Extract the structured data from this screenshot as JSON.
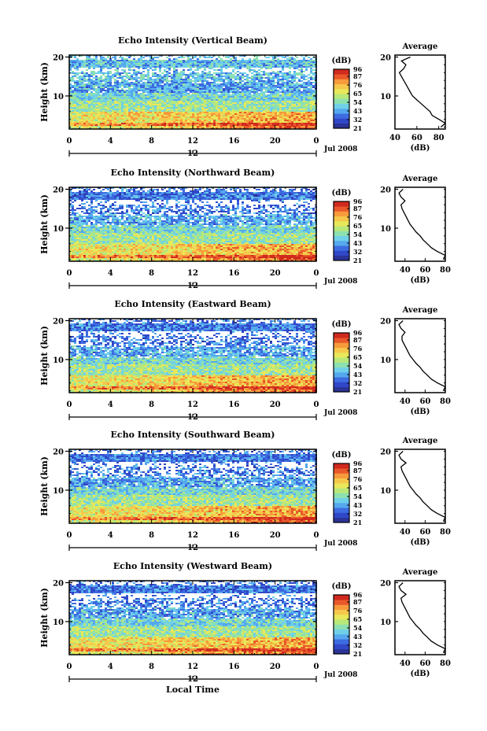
{
  "figure": {
    "x_axis_label": "Local Time",
    "date_label": "Jul 2008",
    "colorbar_unit": "(dB)",
    "profile_title": "Average",
    "profile_xlabel": "(dB)",
    "colorbar_ticks": [
      "96",
      "87",
      "76",
      "65",
      "54",
      "43",
      "32",
      "21"
    ],
    "colormap": [
      "#2b3396",
      "#3047c8",
      "#3d6be0",
      "#55a8ee",
      "#6fd0e8",
      "#8de0b0",
      "#b8e87a",
      "#e8e85a",
      "#f5c84c",
      "#f79a3c",
      "#e9582a",
      "#d02a1e"
    ]
  },
  "chart_data": [
    {
      "type": "heatmap",
      "title": "Echo Intensity (Vertical Beam)",
      "ylabel": "Height (km)",
      "xlabel": "Local Time",
      "x_ticks": [
        "0",
        "4",
        "8",
        "12",
        "16",
        "20",
        "0"
      ],
      "x_range": [
        0,
        24
      ],
      "y_ticks": [
        "20",
        "10"
      ],
      "y_range": [
        1.5,
        20.5
      ],
      "colorbar_range": [
        21,
        96
      ],
      "profile": {
        "title": "Average",
        "xlabel": "(dB)",
        "x_ticks": [
          "40",
          "60",
          "80"
        ],
        "x_range": [
          40,
          86
        ],
        "y_ticks": [
          "20",
          "10"
        ],
        "points": [
          [
            82,
            2
          ],
          [
            86,
            3
          ],
          [
            80,
            4
          ],
          [
            74,
            5
          ],
          [
            72,
            6
          ],
          [
            68,
            7
          ],
          [
            64,
            8
          ],
          [
            60,
            9
          ],
          [
            56,
            10
          ],
          [
            54,
            11
          ],
          [
            52,
            12
          ],
          [
            50,
            13
          ],
          [
            48,
            14
          ],
          [
            46,
            15
          ],
          [
            44,
            16
          ],
          [
            48,
            17
          ],
          [
            50,
            18
          ],
          [
            46,
            19
          ],
          [
            54,
            20
          ]
        ]
      }
    },
    {
      "type": "heatmap",
      "title": "Echo Intensity (Northward Beam)",
      "ylabel": "Height (km)",
      "xlabel": "Local Time",
      "x_ticks": [
        "0",
        "4",
        "8",
        "12",
        "16",
        "20",
        "0"
      ],
      "x_range": [
        0,
        24
      ],
      "y_ticks": [
        "20",
        "10"
      ],
      "y_range": [
        1.5,
        20.5
      ],
      "colorbar_range": [
        21,
        96
      ],
      "profile": {
        "title": "Average",
        "xlabel": "(dB)",
        "x_ticks": [
          "40",
          "60",
          "80"
        ],
        "x_range": [
          30,
          80
        ],
        "y_ticks": [
          "20",
          "10"
        ],
        "points": [
          [
            78,
            2
          ],
          [
            80,
            3
          ],
          [
            72,
            4
          ],
          [
            66,
            5
          ],
          [
            62,
            6
          ],
          [
            58,
            7
          ],
          [
            55,
            8
          ],
          [
            51,
            9
          ],
          [
            48,
            10
          ],
          [
            45,
            11
          ],
          [
            43,
            12
          ],
          [
            41,
            13
          ],
          [
            39,
            14
          ],
          [
            37,
            15
          ],
          [
            36,
            16
          ],
          [
            40,
            17
          ],
          [
            36,
            18
          ],
          [
            34,
            19
          ],
          [
            38,
            20
          ]
        ]
      }
    },
    {
      "type": "heatmap",
      "title": "Echo Intensity (Eastward Beam)",
      "ylabel": "Height (km)",
      "xlabel": "Local Time",
      "x_ticks": [
        "0",
        "4",
        "8",
        "12",
        "16",
        "20",
        "0"
      ],
      "x_range": [
        0,
        24
      ],
      "y_ticks": [
        "20",
        "10"
      ],
      "y_range": [
        1.5,
        20.5
      ],
      "colorbar_range": [
        21,
        96
      ],
      "profile": {
        "title": "Average",
        "xlabel": "(dB)",
        "x_ticks": [
          "40",
          "60",
          "80"
        ],
        "x_range": [
          30,
          80
        ],
        "y_ticks": [
          "20",
          "10"
        ],
        "points": [
          [
            78,
            2
          ],
          [
            80,
            3
          ],
          [
            72,
            4
          ],
          [
            66,
            5
          ],
          [
            62,
            6
          ],
          [
            58,
            7
          ],
          [
            55,
            8
          ],
          [
            51,
            9
          ],
          [
            48,
            10
          ],
          [
            45,
            11
          ],
          [
            43,
            12
          ],
          [
            41,
            13
          ],
          [
            39,
            14
          ],
          [
            37,
            15
          ],
          [
            37,
            16
          ],
          [
            40,
            17
          ],
          [
            36,
            18
          ],
          [
            34,
            19
          ],
          [
            38,
            20
          ]
        ]
      }
    },
    {
      "type": "heatmap",
      "title": "Echo Intensity (Southward Beam)",
      "ylabel": "Height (km)",
      "xlabel": "Local Time",
      "x_ticks": [
        "0",
        "4",
        "8",
        "12",
        "16",
        "20",
        "0"
      ],
      "x_range": [
        0,
        24
      ],
      "y_ticks": [
        "20",
        "10"
      ],
      "y_range": [
        1.5,
        20.5
      ],
      "colorbar_range": [
        21,
        96
      ],
      "profile": {
        "title": "Average",
        "xlabel": "(dB)",
        "x_ticks": [
          "40",
          "60",
          "80"
        ],
        "x_range": [
          30,
          80
        ],
        "y_ticks": [
          "20",
          "10"
        ],
        "points": [
          [
            78,
            2
          ],
          [
            80,
            3
          ],
          [
            72,
            4
          ],
          [
            66,
            5
          ],
          [
            62,
            6
          ],
          [
            58,
            7
          ],
          [
            55,
            8
          ],
          [
            51,
            9
          ],
          [
            48,
            10
          ],
          [
            45,
            11
          ],
          [
            43,
            12
          ],
          [
            41,
            13
          ],
          [
            39,
            14
          ],
          [
            37,
            15
          ],
          [
            36,
            16
          ],
          [
            41,
            17
          ],
          [
            36,
            18
          ],
          [
            34,
            19
          ],
          [
            38,
            20
          ]
        ]
      }
    },
    {
      "type": "heatmap",
      "title": "Echo Intensity (Westward Beam)",
      "ylabel": "Height (km)",
      "xlabel": "Local Time",
      "x_ticks": [
        "0",
        "4",
        "8",
        "12",
        "16",
        "20",
        "0"
      ],
      "x_range": [
        0,
        24
      ],
      "y_ticks": [
        "20",
        "10"
      ],
      "y_range": [
        1.5,
        20.5
      ],
      "colorbar_range": [
        21,
        96
      ],
      "profile": {
        "title": "Average",
        "xlabel": "(dB)",
        "x_ticks": [
          "40",
          "60",
          "80"
        ],
        "x_range": [
          30,
          80
        ],
        "y_ticks": [
          "20",
          "10"
        ],
        "points": [
          [
            78,
            2
          ],
          [
            80,
            3
          ],
          [
            72,
            4
          ],
          [
            66,
            5
          ],
          [
            62,
            6
          ],
          [
            58,
            7
          ],
          [
            55,
            8
          ],
          [
            51,
            9
          ],
          [
            48,
            10
          ],
          [
            45,
            11
          ],
          [
            43,
            12
          ],
          [
            41,
            13
          ],
          [
            39,
            14
          ],
          [
            37,
            15
          ],
          [
            36,
            16
          ],
          [
            41,
            17
          ],
          [
            36,
            18
          ],
          [
            34,
            19
          ],
          [
            38,
            20
          ]
        ]
      }
    }
  ]
}
